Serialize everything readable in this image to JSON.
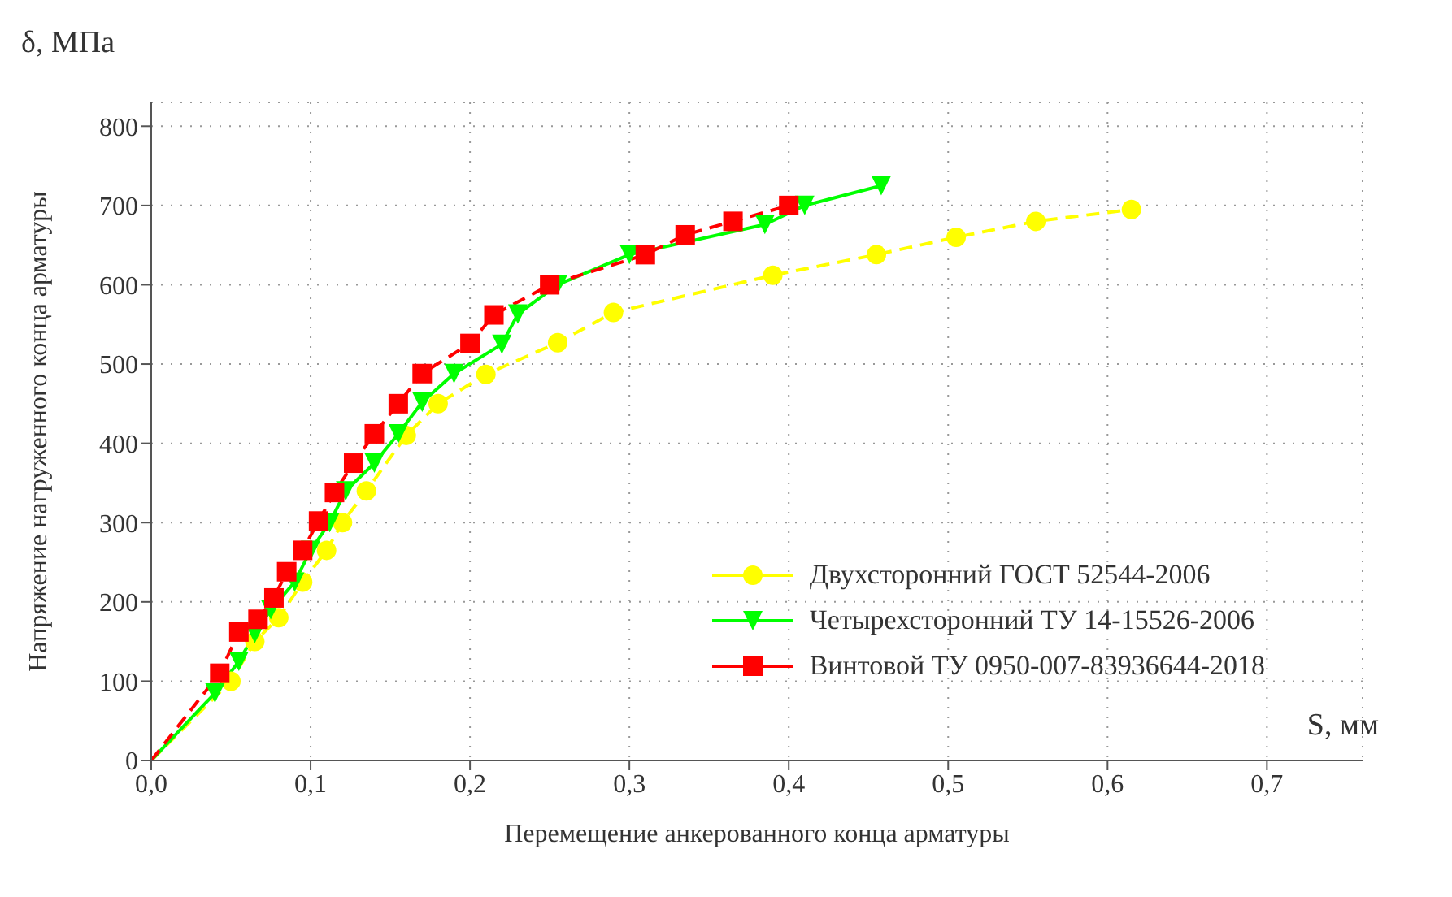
{
  "chart_data": {
    "type": "line",
    "xlabel": "Перемещение анкерованного конца арматуры",
    "ylabel": "Напряжение нагруженного конца арматуры",
    "annotations": [
      "δ, МПа",
      "S, мм"
    ],
    "xlim": [
      0,
      0.76
    ],
    "ylim": [
      0,
      830
    ],
    "xticks": [
      {
        "value": 0,
        "label": "0,0"
      },
      {
        "value": 0.1,
        "label": "0,1"
      },
      {
        "value": 0.2,
        "label": "0,2"
      },
      {
        "value": 0.3,
        "label": "0,3"
      },
      {
        "value": 0.4,
        "label": "0,4"
      },
      {
        "value": 0.5,
        "label": "0,5"
      },
      {
        "value": 0.6,
        "label": "0,6"
      },
      {
        "value": 0.7,
        "label": "0,7"
      }
    ],
    "yticks": [
      0,
      100,
      200,
      300,
      400,
      500,
      600,
      700,
      800
    ],
    "grid": true,
    "legend": "bottom right",
    "series": [
      {
        "name": "Двухсторонний ГОСТ 52544-2006",
        "color": "#ffff00",
        "marker": "circle",
        "line_style": "dashed",
        "x": [
          0,
          0.05,
          0.065,
          0.08,
          0.095,
          0.11,
          0.12,
          0.135,
          0.16,
          0.18,
          0.21,
          0.255,
          0.29,
          0.39,
          0.455,
          0.505,
          0.555,
          0.615
        ],
        "values": [
          0,
          100,
          150,
          180,
          225,
          265,
          300,
          340,
          410,
          450,
          487,
          527,
          565,
          612,
          638,
          660,
          680,
          695
        ]
      },
      {
        "name": "Четырехсторонний ТУ 14-15526-2006",
        "color": "#00ff00",
        "marker": "triangle",
        "line_style": "solid",
        "x": [
          0,
          0.04,
          0.055,
          0.065,
          0.075,
          0.09,
          0.1,
          0.112,
          0.122,
          0.14,
          0.155,
          0.17,
          0.19,
          0.22,
          0.23,
          0.255,
          0.3,
          0.385,
          0.41,
          0.458
        ],
        "values": [
          0,
          85,
          125,
          160,
          190,
          225,
          265,
          300,
          340,
          375,
          412,
          452,
          488,
          525,
          563,
          600,
          638,
          676,
          700,
          725
        ]
      },
      {
        "name": "Винтовой ТУ 0950-007-83936644-2018",
        "color": "#ff0000",
        "marker": "square",
        "line_style": "dashed",
        "x": [
          0,
          0.043,
          0.055,
          0.067,
          0.077,
          0.085,
          0.095,
          0.105,
          0.115,
          0.127,
          0.14,
          0.155,
          0.17,
          0.2,
          0.215,
          0.25,
          0.31,
          0.335,
          0.365,
          0.4
        ],
        "values": [
          0,
          110,
          162,
          178,
          205,
          238,
          265,
          302,
          338,
          375,
          412,
          450,
          488,
          526,
          562,
          600,
          638,
          663,
          680,
          700
        ]
      }
    ]
  }
}
